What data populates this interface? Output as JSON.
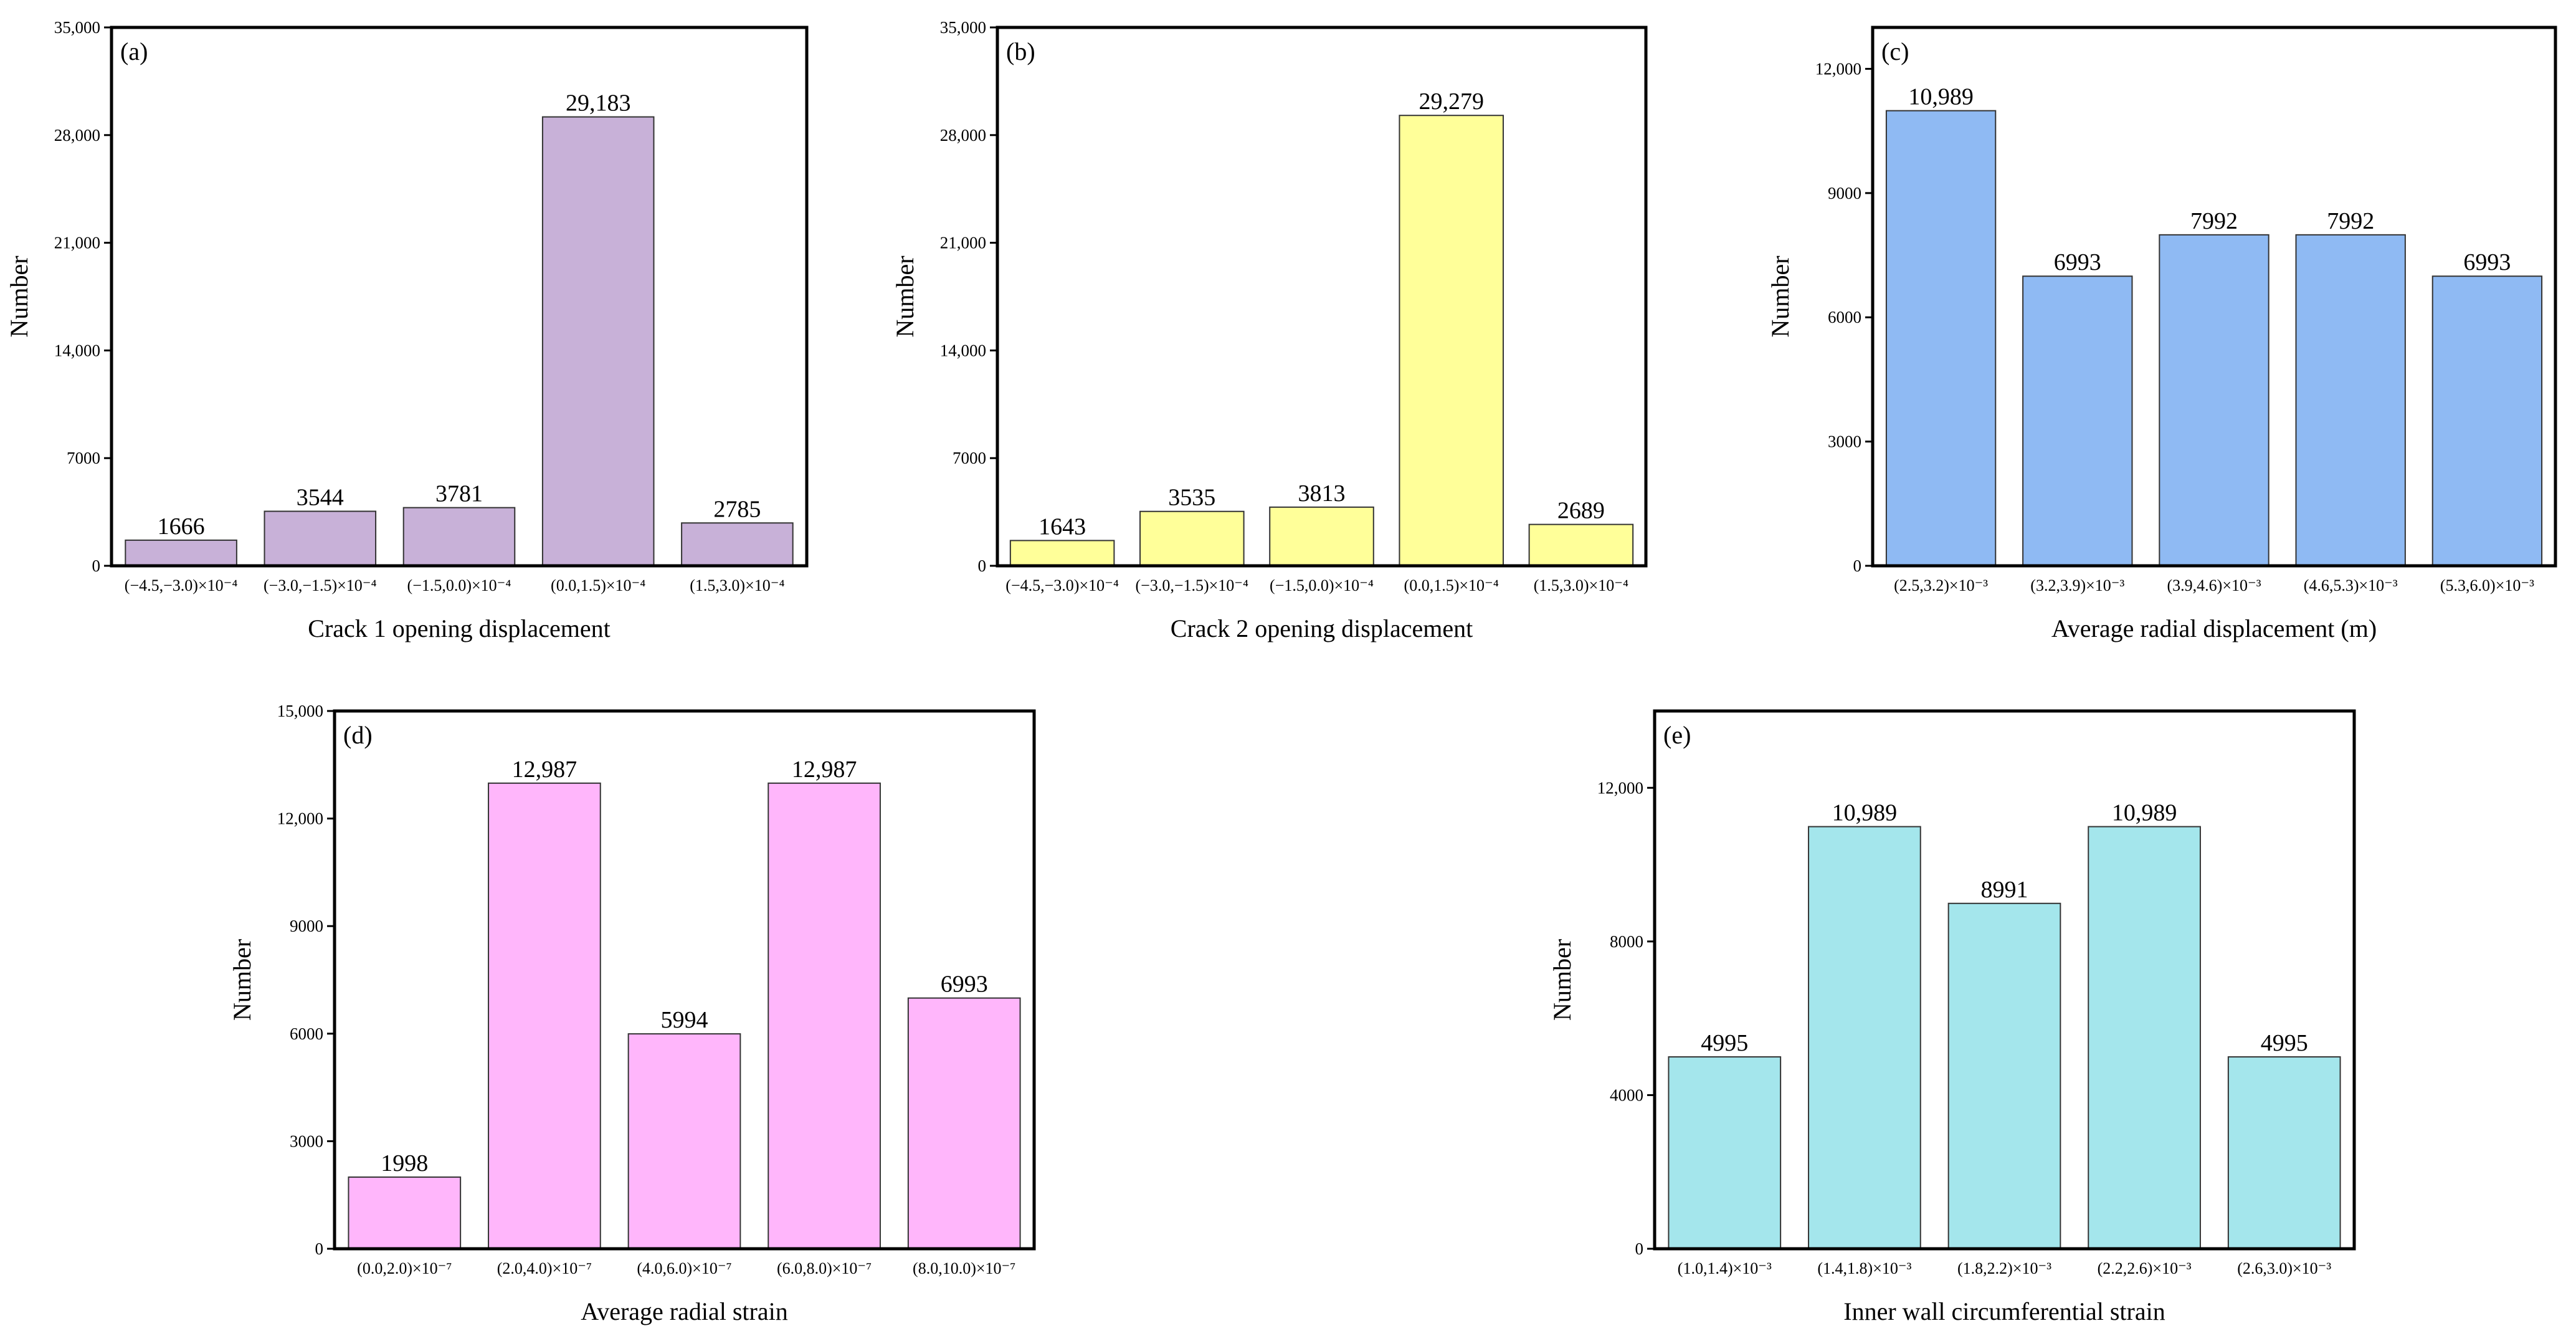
{
  "chart_data": [
    {
      "type": "bar",
      "panel": "(a)",
      "xlabel": "Crack 1 opening displacement",
      "ylabel": "Number",
      "ylim": [
        0,
        35000
      ],
      "yticks": [
        0,
        7000,
        14000,
        21000,
        28000,
        35000
      ],
      "ytick_labels": [
        "0",
        "7000",
        "14,000",
        "21,000",
        "28,000",
        "35,000"
      ],
      "categories": [
        "(−4.5,−3.0)×10⁻⁴",
        "(−3.0,−1.5)×10⁻⁴",
        "(−1.5,0.0)×10⁻⁴",
        "(0.0,1.5)×10⁻⁴",
        "(1.5,3.0)×10⁻⁴"
      ],
      "values": [
        1666,
        3544,
        3781,
        29183,
        2785
      ],
      "value_labels": [
        "1666",
        "3544",
        "3781",
        "29,183",
        "2785"
      ],
      "color": "#c8b1d8"
    },
    {
      "type": "bar",
      "panel": "(b)",
      "xlabel": "Crack 2 opening displacement",
      "ylabel": "Number",
      "ylim": [
        0,
        35000
      ],
      "yticks": [
        0,
        7000,
        14000,
        21000,
        28000,
        35000
      ],
      "ytick_labels": [
        "0",
        "7000",
        "14,000",
        "21,000",
        "28,000",
        "35,000"
      ],
      "categories": [
        "(−4.5,−3.0)×10⁻⁴",
        "(−3.0,−1.5)×10⁻⁴",
        "(−1.5,0.0)×10⁻⁴",
        "(0.0,1.5)×10⁻⁴",
        "(1.5,3.0)×10⁻⁴"
      ],
      "values": [
        1643,
        3535,
        3813,
        29279,
        2689
      ],
      "value_labels": [
        "1643",
        "3535",
        "3813",
        "29,279",
        "2689"
      ],
      "color": "#ffff99"
    },
    {
      "type": "bar",
      "panel": "(c)",
      "xlabel": "Average radial displacement (m)",
      "ylabel": "Number",
      "ylim": [
        0,
        13000
      ],
      "yticks": [
        0,
        3000,
        6000,
        9000,
        12000
      ],
      "ytick_labels": [
        "0",
        "3000",
        "6000",
        "9000",
        "12,000"
      ],
      "categories": [
        "(2.5,3.2)×10⁻³",
        "(3.2,3.9)×10⁻³",
        "(3.9,4.6)×10⁻³",
        "(4.6,5.3)×10⁻³",
        "(5.3,6.0)×10⁻³"
      ],
      "values": [
        10989,
        6993,
        7992,
        7992,
        6993
      ],
      "value_labels": [
        "10,989",
        "6993",
        "7992",
        "7992",
        "6993"
      ],
      "color": "#8fbaf3"
    },
    {
      "type": "bar",
      "panel": "(d)",
      "xlabel": "Average radial strain",
      "ylabel": "Number",
      "ylim": [
        0,
        15000
      ],
      "yticks": [
        0,
        3000,
        6000,
        9000,
        12000,
        15000
      ],
      "ytick_labels": [
        "0",
        "3000",
        "6000",
        "9000",
        "12,000",
        "15,000"
      ],
      "categories": [
        "(0.0,2.0)×10⁻⁷",
        "(2.0,4.0)×10⁻⁷",
        "(4.0,6.0)×10⁻⁷",
        "(6.0,8.0)×10⁻⁷",
        "(8.0,10.0)×10⁻⁷"
      ],
      "values": [
        1998,
        12987,
        5994,
        12987,
        6993
      ],
      "value_labels": [
        "1998",
        "12,987",
        "5994",
        "12,987",
        "6993"
      ],
      "color": "#ffb6fb"
    },
    {
      "type": "bar",
      "panel": "(e)",
      "xlabel": "Inner wall circumferential strain",
      "ylabel": "Number",
      "ylim": [
        0,
        14000
      ],
      "yticks": [
        0,
        4000,
        8000,
        12000
      ],
      "ytick_labels": [
        "0",
        "4000",
        "8000",
        "12,000"
      ],
      "categories": [
        "(1.0,1.4)×10⁻³",
        "(1.4,1.8)×10⁻³",
        "(1.8,2.2)×10⁻³",
        "(2.2,2.6)×10⁻³",
        "(2.6,3.0)×10⁻³"
      ],
      "values": [
        4995,
        10989,
        8991,
        10989,
        4995
      ],
      "value_labels": [
        "4995",
        "10,989",
        "8991",
        "10,989",
        "4995"
      ],
      "color": "#a4e6ec"
    }
  ]
}
